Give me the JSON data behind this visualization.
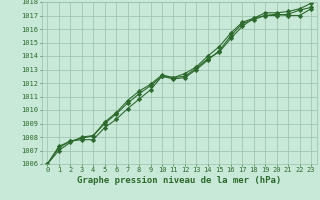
{
  "title": "Graphe pression niveau de la mer (hPa)",
  "x": [
    0,
    1,
    2,
    3,
    4,
    5,
    6,
    7,
    8,
    9,
    10,
    11,
    12,
    13,
    14,
    15,
    16,
    17,
    18,
    19,
    20,
    21,
    22,
    23
  ],
  "line1": [
    1006.0,
    1007.3,
    1007.7,
    1007.8,
    1007.8,
    1008.7,
    1009.3,
    1010.1,
    1010.8,
    1011.5,
    1012.5,
    1012.4,
    1012.5,
    1013.1,
    1013.8,
    1014.3,
    1015.3,
    1016.2,
    1016.8,
    1017.0,
    1017.0,
    1017.1,
    1017.4,
    1017.6
  ],
  "line2": [
    1006.0,
    1007.2,
    1007.7,
    1007.9,
    1008.1,
    1009.0,
    1009.7,
    1010.5,
    1011.2,
    1011.8,
    1012.5,
    1012.3,
    1012.4,
    1013.0,
    1013.7,
    1014.4,
    1015.5,
    1016.4,
    1016.7,
    1017.0,
    1017.1,
    1017.0,
    1017.0,
    1017.5
  ],
  "line3": [
    1006.0,
    1007.0,
    1007.6,
    1008.0,
    1008.1,
    1009.1,
    1009.8,
    1010.7,
    1011.4,
    1011.9,
    1012.6,
    1012.4,
    1012.7,
    1013.2,
    1014.0,
    1014.7,
    1015.7,
    1016.5,
    1016.8,
    1017.2,
    1017.2,
    1017.3,
    1017.5,
    1017.9
  ],
  "line_color": "#2d6a2d",
  "bg_color": "#c8e8d8",
  "plot_bg_color": "#c8e8d8",
  "grid_color": "#9abfaa",
  "ylim": [
    1006,
    1018
  ],
  "xlim": [
    -0.5,
    23.5
  ],
  "yticks": [
    1006,
    1007,
    1008,
    1009,
    1010,
    1011,
    1012,
    1013,
    1014,
    1015,
    1016,
    1017,
    1018
  ],
  "xticks": [
    0,
    1,
    2,
    3,
    4,
    5,
    6,
    7,
    8,
    9,
    10,
    11,
    12,
    13,
    14,
    15,
    16,
    17,
    18,
    19,
    20,
    21,
    22,
    23
  ],
  "marker": "D",
  "markersize": 2.2,
  "linewidth": 0.8,
  "title_fontsize": 6.5,
  "tick_fontsize": 5.0
}
